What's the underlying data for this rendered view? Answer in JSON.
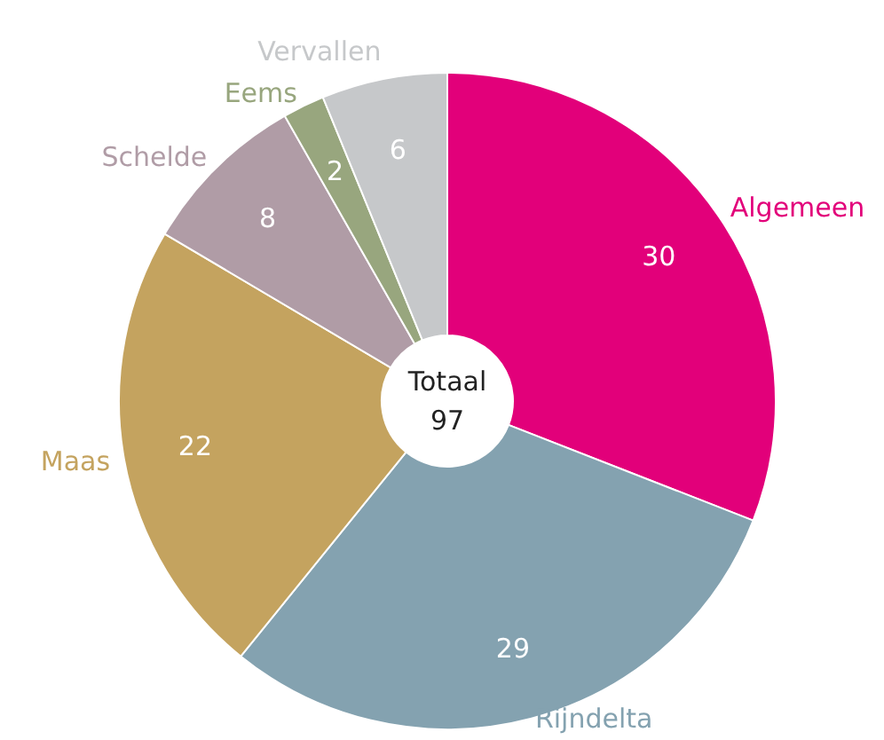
{
  "chart_data": {
    "type": "donut",
    "categories": [
      "Algemeen",
      "Rijndelta",
      "Maas",
      "Schelde",
      "Eems",
      "Vervallen"
    ],
    "values": [
      30,
      29,
      22,
      8,
      2,
      6
    ],
    "colors": [
      "#e2007a",
      "#84a2b0",
      "#c4a35f",
      "#b09ca6",
      "#98a67e",
      "#c6c8ca"
    ],
    "data_labels": true,
    "legend": false,
    "annotations": [
      "Totaal",
      "97"
    ]
  }
}
